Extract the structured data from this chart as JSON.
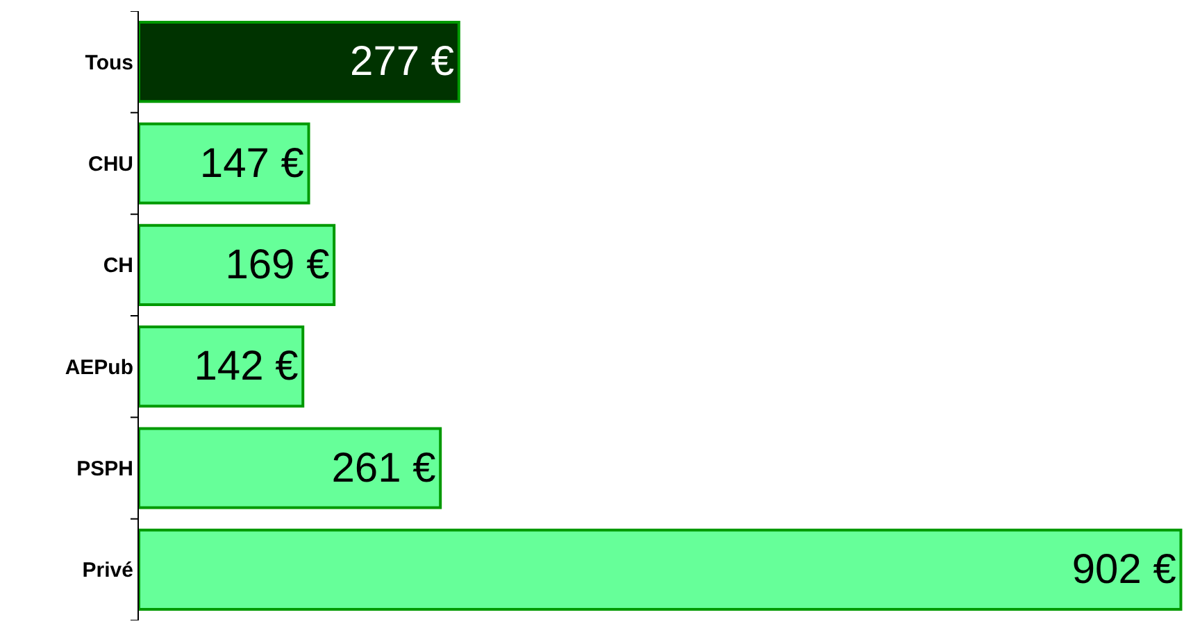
{
  "chart_data": {
    "type": "bar",
    "orientation": "horizontal",
    "categories": [
      "Tous",
      "CHU",
      "CH",
      "AEPub",
      "PSPH",
      "Privé"
    ],
    "values": [
      277,
      147,
      169,
      142,
      261,
      902
    ],
    "colors": [
      "#003300",
      "#66ff99",
      "#66ff99",
      "#66ff99",
      "#66ff99",
      "#66ff99"
    ],
    "value_labels": [
      "277 €",
      "147 €",
      "169 €",
      "142 €",
      "261 €",
      "902 €"
    ]
  }
}
